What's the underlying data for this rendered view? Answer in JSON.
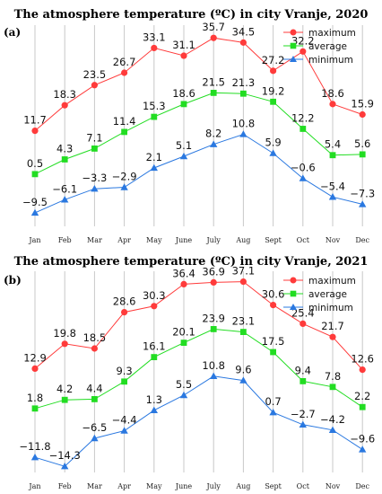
{
  "colors": {
    "maximum": "#ff3b3b",
    "average": "#22dd22",
    "minimum": "#2a78e0",
    "grid": "#c8c8c8"
  },
  "chart_data": [
    {
      "type": "line",
      "panel": "(a)",
      "title": "The atmosphere temperature (ºC) in city Vranje, 2020",
      "categories": [
        "Jan",
        "Feb",
        "Mar",
        "Apr",
        "May",
        "June",
        "July",
        "Aug",
        "Sept",
        "Oct",
        "Nov",
        "Dec"
      ],
      "ylim": [
        -13,
        39
      ],
      "grid": "vertical",
      "legend": "top-right",
      "series": [
        {
          "name": "maximum",
          "marker": "circle",
          "values": [
            11.7,
            18.3,
            23.5,
            26.7,
            33.1,
            31.1,
            35.7,
            34.5,
            27.2,
            32.2,
            18.6,
            15.9
          ]
        },
        {
          "name": "average",
          "marker": "square",
          "values": [
            0.5,
            4.3,
            7.1,
            11.4,
            15.3,
            18.6,
            21.5,
            21.3,
            19.2,
            12.2,
            5.4,
            5.6
          ]
        },
        {
          "name": "minimum",
          "marker": "triangle",
          "values": [
            -9.5,
            -6.1,
            -3.3,
            -2.9,
            2.1,
            5.1,
            8.2,
            10.8,
            5.9,
            -0.6,
            -5.4,
            -7.3
          ]
        }
      ]
    },
    {
      "type": "line",
      "panel": "(b)",
      "title": "The atmosphere temperature (ºC) in city Vranje, 2021",
      "categories": [
        "Jan",
        "Feb",
        "Mar",
        "Apr",
        "May",
        "June",
        "July",
        "Aug",
        "Sept",
        "Oct",
        "Nov",
        "Dec"
      ],
      "ylim": [
        -16,
        40
      ],
      "grid": "vertical",
      "legend": "top-right",
      "series": [
        {
          "name": "maximum",
          "marker": "circle",
          "values": [
            12.9,
            19.8,
            18.5,
            28.6,
            30.3,
            36.4,
            36.9,
            37.1,
            30.6,
            25.4,
            21.7,
            12.6
          ]
        },
        {
          "name": "average",
          "marker": "square",
          "values": [
            1.8,
            4.2,
            4.4,
            9.3,
            16.1,
            20.1,
            23.9,
            23.1,
            17.5,
            9.4,
            7.8,
            2.2
          ]
        },
        {
          "name": "minimum",
          "marker": "triangle",
          "values": [
            -11.8,
            -14.3,
            -6.5,
            -4.4,
            1.3,
            5.5,
            10.8,
            9.6,
            0.7,
            -2.7,
            -4.2,
            -9.6
          ]
        }
      ]
    }
  ]
}
